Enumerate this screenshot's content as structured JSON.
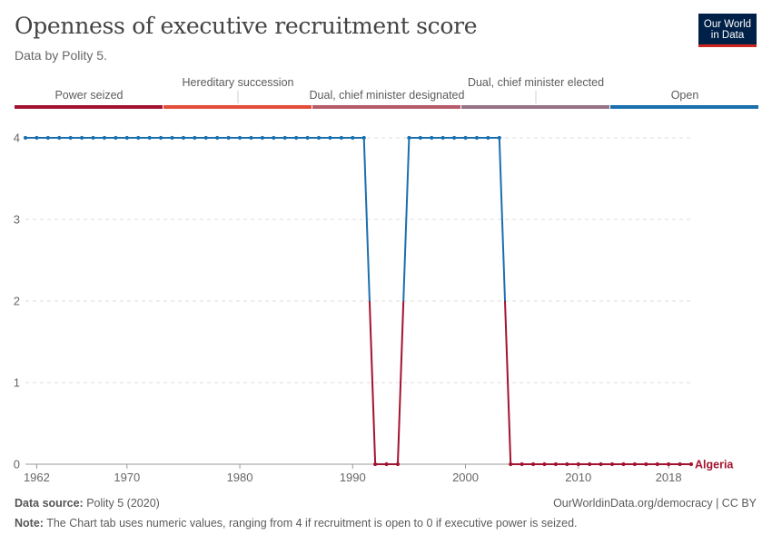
{
  "header": {
    "title": "Openness of executive recruitment score",
    "subtitle": "Data by Polity 5.",
    "logo_line1": "Our World",
    "logo_line2": "in Data"
  },
  "footer": {
    "source_label": "Data source:",
    "source_value": "Polity 5 (2020)",
    "url": "OurWorldinData.org/democracy | CC BY",
    "note_label": "Note:",
    "note_value": "The Chart tab uses numeric values, ranging from 4 if recruitment is open to 0 if executive power is seized."
  },
  "chart_data": {
    "type": "line",
    "title": "Openness of executive recruitment score",
    "xlabel": "",
    "ylabel": "",
    "xlim": [
      1961,
      2020
    ],
    "ylim": [
      0,
      4
    ],
    "x_ticks": [
      1962,
      1970,
      1980,
      1990,
      2000,
      2010,
      2018
    ],
    "y_ticks": [
      0,
      1,
      2,
      3,
      4
    ],
    "grid": true,
    "legend_title": "",
    "color_scale": [
      {
        "label": "Power seized",
        "color": "#a2132f",
        "from": 0,
        "to": 0.8
      },
      {
        "label": "Hereditary succession",
        "color": "#e44d3a",
        "from": 0.8,
        "to": 1.6
      },
      {
        "label": "Dual, chief minister designated",
        "color": "#b65b69",
        "from": 1.6,
        "to": 2.4
      },
      {
        "label": "Dual, chief minister elected",
        "color": "#977184",
        "from": 2.4,
        "to": 3.2
      },
      {
        "label": "Open",
        "color": "#1a6fad",
        "from": 3.2,
        "to": 4.0
      }
    ],
    "series": [
      {
        "name": "Algeria",
        "x": [
          1961,
          1962,
          1963,
          1964,
          1965,
          1966,
          1967,
          1968,
          1969,
          1970,
          1971,
          1972,
          1973,
          1974,
          1975,
          1976,
          1977,
          1978,
          1979,
          1980,
          1981,
          1982,
          1983,
          1984,
          1985,
          1986,
          1987,
          1988,
          1989,
          1990,
          1991,
          1992,
          1993,
          1994,
          1995,
          1996,
          1997,
          1998,
          1999,
          2000,
          2001,
          2002,
          2003,
          2004,
          2005,
          2006,
          2007,
          2008,
          2009,
          2010,
          2011,
          2012,
          2013,
          2014,
          2015,
          2016,
          2017,
          2018,
          2019,
          2020
        ],
        "values": [
          4,
          4,
          4,
          4,
          4,
          4,
          4,
          4,
          4,
          4,
          4,
          4,
          4,
          4,
          4,
          4,
          4,
          4,
          4,
          4,
          4,
          4,
          4,
          4,
          4,
          4,
          4,
          4,
          4,
          4,
          4,
          0,
          0,
          0,
          4,
          4,
          4,
          4,
          4,
          4,
          4,
          4,
          4,
          0,
          0,
          0,
          0,
          0,
          0,
          0,
          0,
          0,
          0,
          0,
          0,
          0,
          0,
          0,
          0,
          0
        ]
      }
    ]
  }
}
